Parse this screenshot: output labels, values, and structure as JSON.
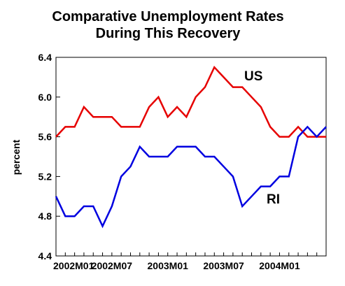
{
  "chart_data": {
    "type": "line",
    "title": [
      "Comparative Unemployment Rates",
      "During This Recovery"
    ],
    "ylabel": "percent",
    "xlabel": "",
    "ylim": [
      4.4,
      6.4
    ],
    "yticks": [
      "4.4",
      "4.8",
      "5.2",
      "5.6",
      "6.0",
      "6.4"
    ],
    "xticks": [
      "2002M01",
      "2002M07",
      "2003M01",
      "2003M07",
      "2004M01"
    ],
    "x": [
      "2002M01",
      "2002M02",
      "2002M03",
      "2002M04",
      "2002M05",
      "2002M06",
      "2002M07",
      "2002M08",
      "2002M09",
      "2002M10",
      "2002M11",
      "2002M12",
      "2003M01",
      "2003M02",
      "2003M03",
      "2003M04",
      "2003M05",
      "2003M06",
      "2003M07",
      "2003M08",
      "2003M09",
      "2003M10",
      "2003M11",
      "2003M12",
      "2004M01",
      "2004M02",
      "2004M03",
      "2004M04",
      "2004M05",
      "2004M06"
    ],
    "series": [
      {
        "name": "US",
        "color": "#e60000",
        "values": [
          5.6,
          5.7,
          5.7,
          5.9,
          5.8,
          5.8,
          5.8,
          5.7,
          5.7,
          5.7,
          5.9,
          6.0,
          5.8,
          5.9,
          5.8,
          6.0,
          6.1,
          6.3,
          6.2,
          6.1,
          6.1,
          6.0,
          5.9,
          5.7,
          5.6,
          5.6,
          5.7,
          5.6,
          5.6,
          5.6
        ]
      },
      {
        "name": "RI",
        "color": "#0000e0",
        "values": [
          5.0,
          4.8,
          4.8,
          4.9,
          4.9,
          4.7,
          4.9,
          5.2,
          5.3,
          5.5,
          5.4,
          5.4,
          5.4,
          5.5,
          5.5,
          5.5,
          5.4,
          5.4,
          5.3,
          5.2,
          4.9,
          5.0,
          5.1,
          5.1,
          5.2,
          5.2,
          5.6,
          5.7,
          5.6,
          5.7
        ]
      }
    ],
    "grid": false,
    "legend": "inline labels"
  }
}
